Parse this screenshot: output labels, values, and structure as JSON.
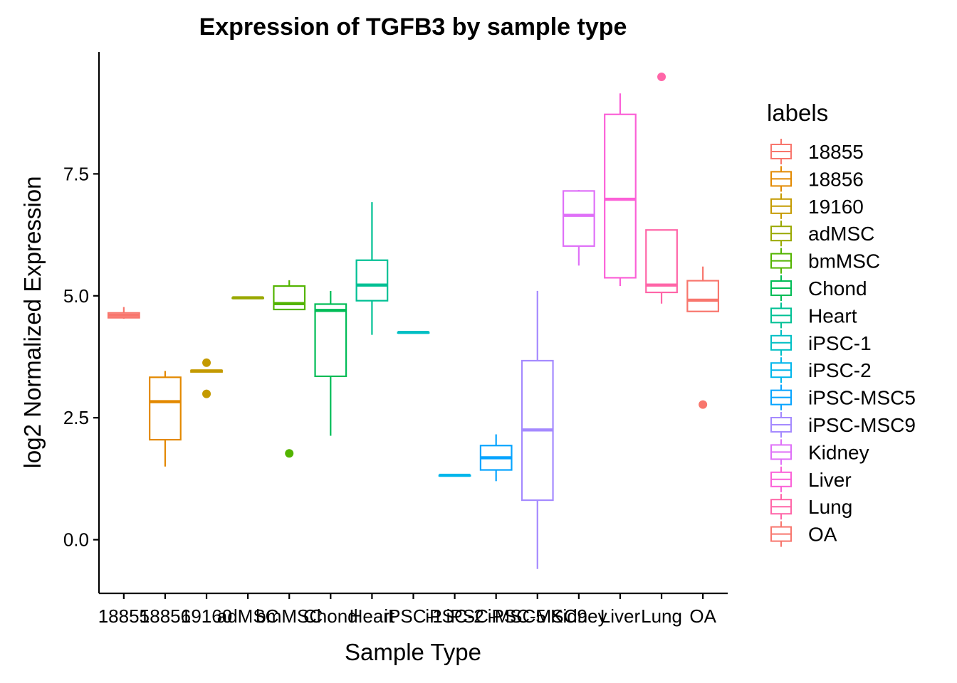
{
  "chart_data": {
    "type": "box",
    "title": "Expression of TGFB3 by sample type",
    "xlabel": "Sample Type",
    "ylabel": "log2 Normalized Expression",
    "ylim": [
      -1.1,
      10.0
    ],
    "yticks": [
      0.0,
      2.5,
      5.0,
      7.5
    ],
    "ytick_labels": [
      "0.0",
      "2.5",
      "5.0",
      "7.5"
    ],
    "legend_title": "labels",
    "legend_position": "right",
    "grid": false,
    "categories": [
      "18855",
      "18856",
      "19160",
      "adMSC",
      "bmMSC",
      "Chond",
      "Heart",
      "iPSC-1",
      "iPSC-2",
      "iPSC-MSC5",
      "iPSC-MSC9",
      "Kidney",
      "Liver",
      "Lung",
      "OA"
    ],
    "colors": [
      "#F8766D",
      "#E38900",
      "#C49A00",
      "#99A800",
      "#53B400",
      "#00BC56",
      "#00C094",
      "#00BFC4",
      "#00B6EB",
      "#06A4FF",
      "#A58AFF",
      "#DF70F8",
      "#FB61D7",
      "#FF66A8",
      "#F8766D"
    ],
    "boxes": [
      {
        "label": "18855",
        "min": 4.53,
        "q1": 4.55,
        "median": 4.6,
        "q3": 4.65,
        "max": 4.77,
        "outliers": []
      },
      {
        "label": "18856",
        "min": 1.5,
        "q1": 2.05,
        "median": 2.83,
        "q3": 3.33,
        "max": 3.46,
        "outliers": []
      },
      {
        "label": "19160",
        "min": 3.43,
        "q1": 3.44,
        "median": 3.46,
        "q3": 3.47,
        "max": 3.48,
        "outliers": [
          3.63,
          2.99
        ]
      },
      {
        "label": "adMSC",
        "min": 4.95,
        "q1": 4.95,
        "median": 4.96,
        "q3": 4.96,
        "max": 4.97,
        "outliers": []
      },
      {
        "label": "bmMSC",
        "min": 4.72,
        "q1": 4.72,
        "median": 4.84,
        "q3": 5.2,
        "max": 5.32,
        "outliers": [
          1.77
        ]
      },
      {
        "label": "Chond",
        "min": 2.13,
        "q1": 3.35,
        "median": 4.7,
        "q3": 4.83,
        "max": 5.1,
        "outliers": []
      },
      {
        "label": "Heart",
        "min": 4.2,
        "q1": 4.9,
        "median": 5.22,
        "q3": 5.73,
        "max": 6.92,
        "outliers": []
      },
      {
        "label": "iPSC-1",
        "min": 4.24,
        "q1": 4.24,
        "median": 4.25,
        "q3": 4.25,
        "max": 4.26,
        "outliers": []
      },
      {
        "label": "iPSC-2",
        "min": 1.31,
        "q1": 1.31,
        "median": 1.32,
        "q3": 1.32,
        "max": 1.33,
        "outliers": []
      },
      {
        "label": "iPSC-MSC5",
        "min": 1.2,
        "q1": 1.43,
        "median": 1.68,
        "q3": 1.93,
        "max": 2.16,
        "outliers": []
      },
      {
        "label": "iPSC-MSC9",
        "min": -0.6,
        "q1": 0.81,
        "median": 2.25,
        "q3": 3.67,
        "max": 5.1,
        "outliers": []
      },
      {
        "label": "Kidney",
        "min": 5.62,
        "q1": 6.02,
        "median": 6.65,
        "q3": 7.15,
        "max": 7.17,
        "outliers": []
      },
      {
        "label": "Liver",
        "min": 5.2,
        "q1": 5.37,
        "median": 6.98,
        "q3": 8.72,
        "max": 9.15,
        "outliers": []
      },
      {
        "label": "Lung",
        "min": 4.84,
        "q1": 5.07,
        "median": 5.22,
        "q3": 6.35,
        "max": 6.35,
        "outliers": [
          9.49
        ]
      },
      {
        "label": "OA",
        "min": 4.68,
        "q1": 4.68,
        "median": 4.91,
        "q3": 5.31,
        "max": 5.6,
        "outliers": [
          2.77
        ]
      }
    ]
  }
}
